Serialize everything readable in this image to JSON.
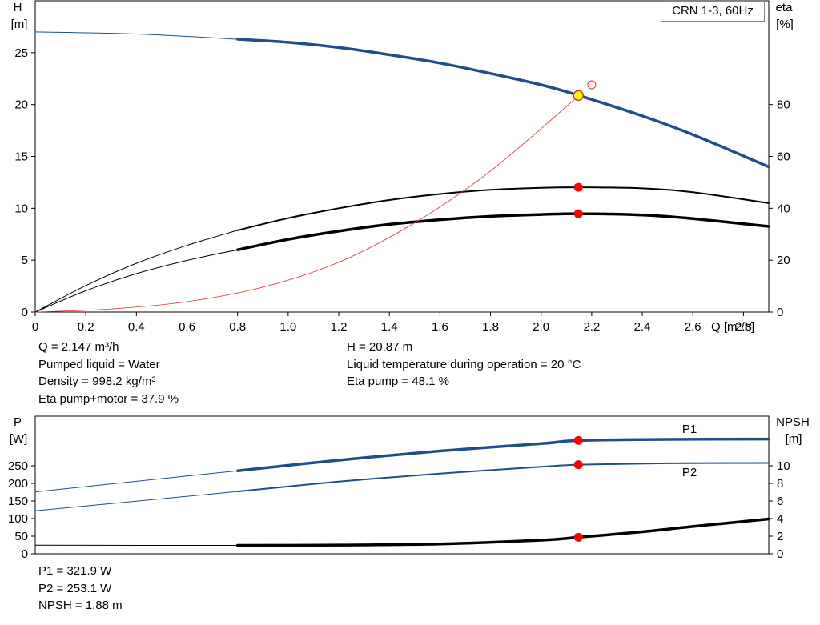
{
  "title": "CRN 1-3, 60Hz",
  "chart_data": [
    {
      "type": "line",
      "name": "H-eta",
      "x_axis": {
        "label": "Q [m³/h]",
        "range": [
          0,
          2.9
        ],
        "ticks": [
          "0",
          "0.2",
          "0.4",
          "0.6",
          "0.8",
          "1.0",
          "1.2",
          "1.4",
          "1.6",
          "1.8",
          "2.0",
          "2.2",
          "2.4",
          "2.6",
          "2.8"
        ]
      },
      "y_left": {
        "label_top": "H",
        "label_unit": "[m]",
        "range": [
          0,
          30
        ],
        "ticks": [
          "0",
          "5",
          "10",
          "15",
          "20",
          "25"
        ]
      },
      "y_right": {
        "label_top": "eta",
        "label_unit": "[%]",
        "range": [
          0,
          120
        ],
        "ticks": [
          "0",
          "20",
          "40",
          "60",
          "80"
        ]
      },
      "series": [
        {
          "axis": "left",
          "color": "#1f4e8a",
          "stroke": 3.5,
          "x": [
            0.8,
            1.0,
            1.2,
            1.4,
            1.6,
            1.8,
            2.0,
            2.15,
            2.4,
            2.6,
            2.9
          ],
          "y": [
            26.3,
            26.0,
            25.5,
            24.8,
            24.0,
            23.0,
            21.9,
            20.87,
            18.9,
            17.1,
            14.0
          ]
        },
        {
          "axis": "left",
          "color": "#1f4e8a",
          "stroke": 1,
          "x": [
            0,
            0.4,
            0.8
          ],
          "y": [
            27.0,
            26.8,
            26.3
          ]
        },
        {
          "axis": "right",
          "color": "#000000",
          "stroke": 2,
          "x": [
            0.8,
            1.0,
            1.2,
            1.4,
            1.6,
            1.8,
            2.0,
            2.15,
            2.4,
            2.6,
            2.9
          ],
          "y": [
            31.5,
            36.2,
            40.0,
            43.2,
            45.5,
            47.1,
            47.9,
            48.1,
            47.7,
            46.2,
            42.0
          ]
        },
        {
          "axis": "right",
          "color": "#000000",
          "stroke": 1,
          "x": [
            0,
            0.2,
            0.4,
            0.6,
            0.8
          ],
          "y": [
            0,
            10.2,
            18.8,
            25.7,
            31.5
          ]
        },
        {
          "axis": "right",
          "color": "#000000",
          "stroke": 3.5,
          "x": [
            0.8,
            1.0,
            1.2,
            1.4,
            1.6,
            1.8,
            2.0,
            2.15,
            2.4,
            2.6,
            2.9
          ],
          "y": [
            24.0,
            28.0,
            31.2,
            33.8,
            35.6,
            36.9,
            37.6,
            37.9,
            37.4,
            36.0,
            33.0
          ]
        },
        {
          "axis": "right",
          "color": "#000000",
          "stroke": 1,
          "x": [
            0,
            0.2,
            0.4,
            0.6,
            0.8
          ],
          "y": [
            0,
            8.2,
            14.8,
            19.9,
            24.0
          ]
        },
        {
          "axis": "left",
          "color": "#e03030",
          "stroke": 0.8,
          "x": [
            0,
            0.3,
            0.6,
            0.9,
            1.2,
            1.5,
            1.8,
            2.15
          ],
          "y": [
            0,
            0.3,
            1.0,
            2.4,
            4.8,
            8.6,
            13.6,
            20.87
          ]
        }
      ],
      "operating_point": {
        "x": 2.147,
        "H": 20.87,
        "eta_pump": 48.1,
        "eta_total": 37.9
      },
      "requested_point": {
        "x": 2.2,
        "H": 21.9
      }
    },
    {
      "type": "line",
      "name": "P-NPSH",
      "y_left": {
        "label_top": "P",
        "label_unit": "[W]",
        "range": [
          0,
          300
        ],
        "ticks": [
          "0",
          "50",
          "100",
          "150",
          "200",
          "250"
        ]
      },
      "y_right": {
        "label_top": "NPSH",
        "label_unit": "[m]",
        "range": [
          0,
          12
        ],
        "ticks": [
          "0",
          "2",
          "4",
          "6",
          "8",
          "10"
        ]
      },
      "series": [
        {
          "name": "P1",
          "axis": "left",
          "color": "#1f4e8a",
          "stroke": 3.5,
          "x": [
            0.8,
            1.2,
            1.6,
            2.0,
            2.15,
            2.5,
            2.9
          ],
          "y": [
            236,
            266,
            292,
            313,
            321.9,
            325,
            326
          ]
        },
        {
          "axis": "left",
          "color": "#1f4e8a",
          "stroke": 1,
          "x": [
            0,
            0.8
          ],
          "y": [
            176,
            236
          ]
        },
        {
          "name": "P2",
          "axis": "left",
          "color": "#1f4e8a",
          "stroke": 2,
          "x": [
            0.8,
            1.2,
            1.6,
            2.0,
            2.15,
            2.5,
            2.9
          ],
          "y": [
            177,
            205,
            228,
            247,
            253.1,
            257,
            258
          ]
        },
        {
          "axis": "left",
          "color": "#1f4e8a",
          "stroke": 1,
          "x": [
            0,
            0.8
          ],
          "y": [
            122,
            177
          ]
        },
        {
          "axis": "right",
          "color": "#000000",
          "stroke": 3.5,
          "x": [
            0.8,
            1.2,
            1.6,
            2.0,
            2.15,
            2.4,
            2.6,
            2.9
          ],
          "y": [
            0.95,
            0.99,
            1.12,
            1.55,
            1.88,
            2.5,
            3.1,
            3.95
          ]
        },
        {
          "axis": "right",
          "color": "#000000",
          "stroke": 1,
          "x": [
            0,
            0.8
          ],
          "y": [
            0.97,
            0.95
          ]
        }
      ],
      "operating_point": {
        "x": 2.147,
        "P1": 321.9,
        "P2": 253.1,
        "NPSH": 1.88
      }
    }
  ],
  "info_top_left": [
    "Q = 2.147 m³/h",
    "Pumped liquid = Water",
    "Density = 998.2 kg/m³",
    "Eta pump+motor = 37.9 %"
  ],
  "info_top_right": [
    "H = 20.87 m",
    "Liquid temperature during operation = 20 °C",
    "Eta pump = 48.1 %"
  ],
  "info_bottom": [
    "P1 = 321.9 W",
    "P2 = 253.1 W",
    "NPSH = 1.88 m"
  ],
  "series_labels": {
    "p1": "P1",
    "p2": "P2"
  }
}
